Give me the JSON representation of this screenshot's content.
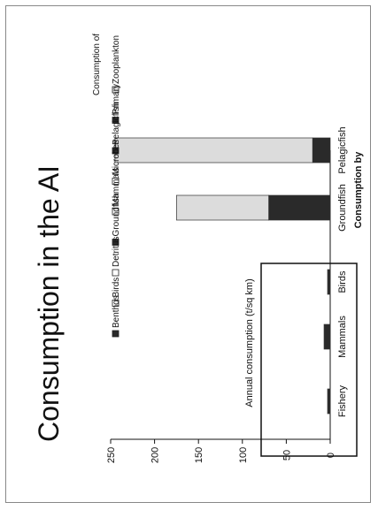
{
  "chart_data": {
    "type": "bar",
    "stacked": true,
    "orientation": "horizontal-bars (page is rotated)",
    "title": "Consumption in the AI",
    "xlabel": "Consumption by",
    "ylabel": "Annual consumption (t/sq km)",
    "ylim": [
      0,
      250
    ],
    "y_ticks": [
      0,
      50,
      100,
      150,
      200,
      250
    ],
    "categories": [
      "Fishery",
      "Mammals",
      "Birds",
      "Groundfish",
      "Pelagicfish"
    ],
    "legend_title": "Consumption of",
    "legend_placement": "right",
    "series": [
      {
        "name": "Zooplankton",
        "color": "#dcdcdc",
        "values": [
          0,
          0,
          0,
          105,
          225
        ]
      },
      {
        "name": "Primary",
        "color": "#2a2a2a",
        "values": [
          0,
          0,
          0,
          0,
          0
        ]
      },
      {
        "name": "Pelagicfish",
        "color": "#2a2a2a",
        "values": [
          3,
          7,
          3,
          70,
          20
        ]
      },
      {
        "name": "Microbes",
        "color": "#ffffff",
        "values": [
          0,
          0,
          0,
          0,
          0
        ]
      },
      {
        "name": "Mammals",
        "color": "#ffffff",
        "values": [
          0,
          0,
          0,
          0,
          0
        ]
      },
      {
        "name": "Groundfish",
        "color": "#2a2a2a",
        "values": [
          0,
          0,
          0,
          0,
          0
        ]
      },
      {
        "name": "Detritus",
        "color": "#ffffff",
        "values": [
          0,
          0,
          0,
          0,
          0
        ]
      },
      {
        "name": "Birds",
        "color": "#ffffff",
        "values": [
          0,
          0,
          0,
          0,
          0
        ]
      },
      {
        "name": "Benthos",
        "color": "#2a2a2a",
        "values": [
          0,
          0,
          0,
          0,
          0
        ]
      }
    ],
    "highlight_box": "around Fishery, Mammals and Birds"
  }
}
